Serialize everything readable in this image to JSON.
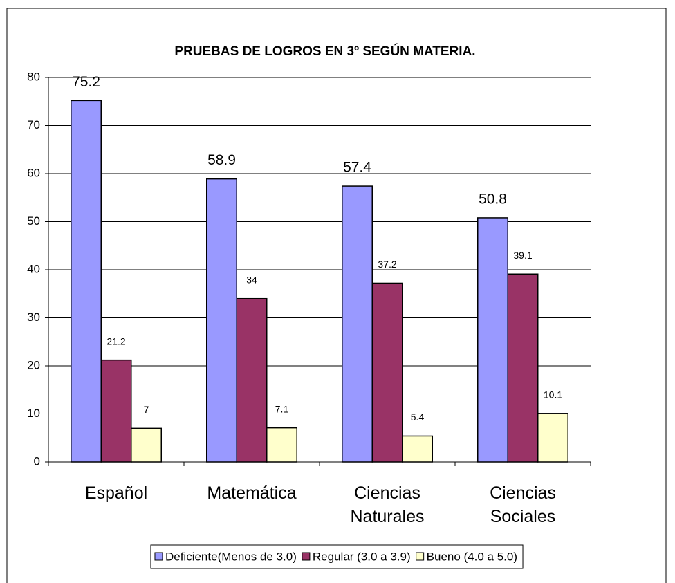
{
  "chart_data": {
    "type": "bar",
    "title": "PRUEBAS DE LOGROS EN 3º  SEGÚN MATERIA.",
    "categories": [
      "Español",
      "Matemática",
      "Ciencias Naturales",
      "Ciencias Sociales"
    ],
    "series": [
      {
        "name": "Deficiente(Menos de 3.0)",
        "color": "#9999ff",
        "values": [
          75.2,
          58.9,
          57.4,
          50.8
        ]
      },
      {
        "name": "Regular (3.0 a 3.9)",
        "color": "#993366",
        "values": [
          21.2,
          34,
          37.2,
          39.1
        ]
      },
      {
        "name": "Bueno (4.0 a 5.0)",
        "color": "#ffffcc",
        "values": [
          7,
          7.1,
          5.4,
          10.1
        ]
      }
    ],
    "ylim": [
      0,
      80
    ],
    "yticks": [
      0,
      10,
      20,
      30,
      40,
      50,
      60,
      70,
      80
    ],
    "grid": true,
    "legend": "bottom"
  }
}
